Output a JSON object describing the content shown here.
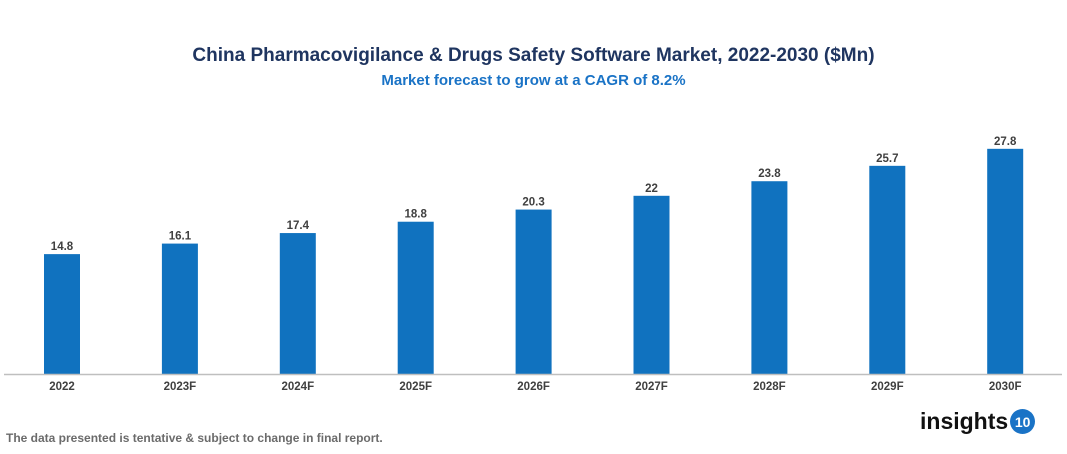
{
  "chart_data": {
    "type": "bar",
    "title": "China Pharmacovigilance & Drugs Safety Software Market, 2022-2030 ($Mn)",
    "subtitle": "Market forecast to grow at a CAGR of 8.2%",
    "categories": [
      "2022",
      "2023F",
      "2024F",
      "2025F",
      "2026F",
      "2027F",
      "2028F",
      "2029F",
      "2030F"
    ],
    "values": [
      14.8,
      16.1,
      17.4,
      18.8,
      20.3,
      22,
      23.8,
      25.7,
      27.8
    ],
    "xlabel": "",
    "ylabel": "",
    "ylim": [
      0,
      30
    ],
    "grid": false,
    "data_labels": true,
    "bar_color": "#1072bf"
  },
  "footnote": "The data presented is tentative & subject to change in final report.",
  "logo": {
    "text": "insights",
    "badge": "10"
  }
}
